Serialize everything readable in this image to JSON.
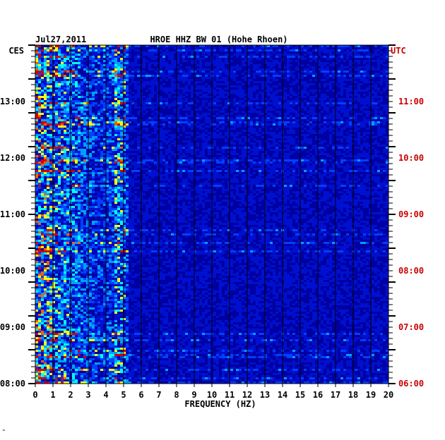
{
  "chart_data": {
    "type": "heatmap",
    "title": "HROE HHZ BW 01 (Hohe Rhoen)",
    "date": "Jul27,2011",
    "xlabel": "FREQUENCY (HZ)",
    "xlim": [
      0,
      20
    ],
    "x_ticks": [
      "0",
      "1",
      "2",
      "3",
      "4",
      "5",
      "6",
      "7",
      "8",
      "9",
      "10",
      "11",
      "12",
      "13",
      "14",
      "15",
      "16",
      "17",
      "18",
      "19",
      "20"
    ],
    "left_axis_label": "CES",
    "right_axis_label": "UTC",
    "left_time_ticks": [
      "08:00",
      "09:00",
      "10:00",
      "11:00",
      "12:00",
      "13:00"
    ],
    "right_time_ticks": [
      "06:00",
      "07:00",
      "08:00",
      "09:00",
      "10:00",
      "11:00"
    ],
    "time_range_local": [
      "08:00",
      "13:55"
    ],
    "colors": {
      "background": "#0000a0",
      "grid": "#000000",
      "left_axis": "#000000",
      "right_axis": "#cc0000",
      "spectrum": [
        "#0000a0",
        "#0010d0",
        "#0040ff",
        "#00a0ff",
        "#00ffff",
        "#ffff00",
        "#ff6000",
        "#d00000"
      ]
    },
    "footer_mark": "\""
  }
}
